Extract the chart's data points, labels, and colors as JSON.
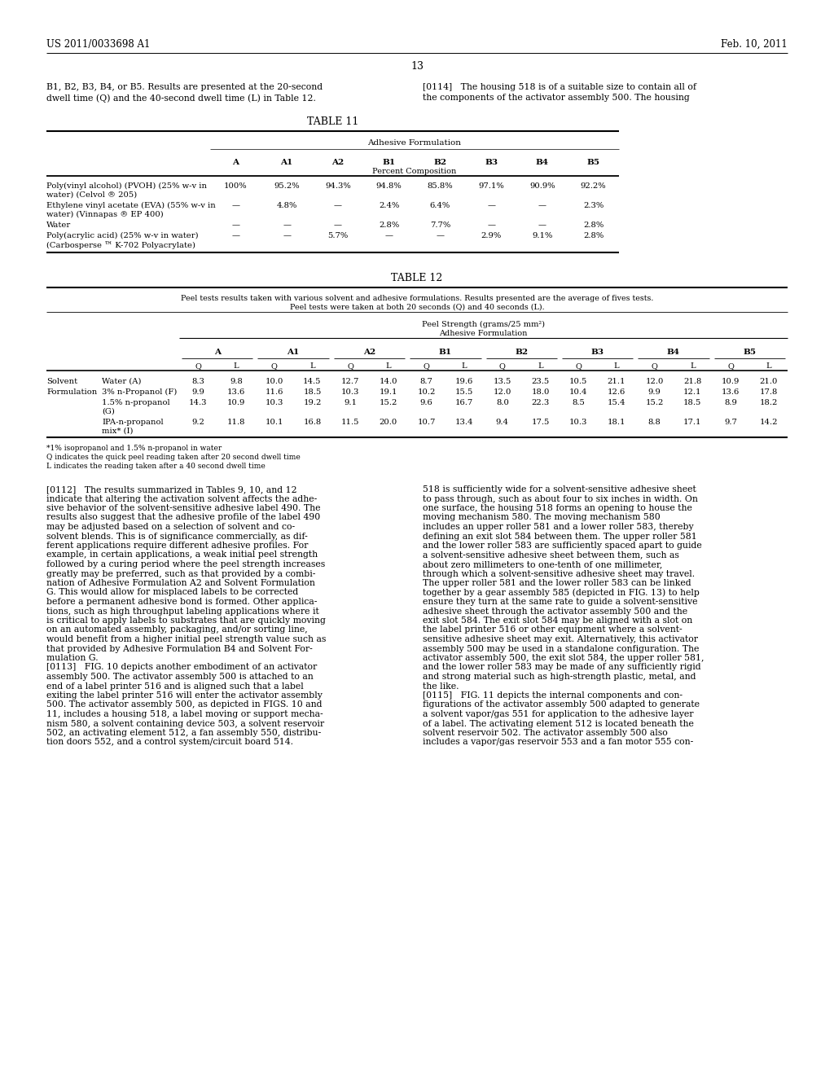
{
  "page_header_left": "US 2011/0033698 A1",
  "page_header_right": "Feb. 10, 2011",
  "page_number": "13",
  "bg_color": "#ffffff",
  "col_left_text1_line1": "B1, B2, B3, B4, or B5. Results are presented at the 20-second",
  "col_left_text1_line2": "dwell time (Q) and the 40-second dwell time (L) in Table 12.",
  "col_right_text1_line1": "[0114]   The housing 518 is of a suitable size to contain all of",
  "col_right_text1_line2": "the components of the activator assembly 500. The housing",
  "table11_title": "TABLE 11",
  "table11_header1": "Adhesive Formulation",
  "table11_cols": [
    "A",
    "A1",
    "A2",
    "B1",
    "B2",
    "B3",
    "B4",
    "B5"
  ],
  "table11_subheader": "Percent Composition",
  "table11_row0_label1": "Poly(vinyl alcohol) (PVOH) (25% w-v in",
  "table11_row0_label2": "water) (Celvol ® 205)",
  "table11_row0_data": [
    "100%",
    "95.2%",
    "94.3%",
    "94.8%",
    "85.8%",
    "97.1%",
    "90.9%",
    "92.2%"
  ],
  "table11_row1_label1": "Ethylene vinyl acetate (EVA) (55% w-v in",
  "table11_row1_label2": "water) (Vinnapas ® EP 400)",
  "table11_row1_data": [
    "—",
    "4.8%",
    "—",
    "2.4%",
    "6.4%",
    "—",
    "—",
    "2.3%"
  ],
  "table11_row2_label1": "Water",
  "table11_row2_label2": "",
  "table11_row2_data": [
    "—",
    "—",
    "—",
    "2.8%",
    "7.7%",
    "—",
    "—",
    "2.8%"
  ],
  "table11_row3_label1": "Poly(acrylic acid) (25% w-v in water)",
  "table11_row3_label2": "(Carbosperse ™ K-702 Polyacrylate)",
  "table11_row3_data": [
    "—",
    "—",
    "5.7%",
    "—",
    "—",
    "2.9%",
    "9.1%",
    "2.8%"
  ],
  "table12_title": "TABLE 12",
  "table12_note_line1": "Peel tests results taken with various solvent and adhesive formulations. Results presented are the average of fives tests.",
  "table12_note_line2": "Peel tests were taken at both 20 seconds (Q) and 40 seconds (L).",
  "table12_header1": "Peel Strength (grams/25 mm²)",
  "table12_header2": "Adhesive Formulation",
  "table12_cols": [
    "A",
    "A1",
    "A2",
    "B1",
    "B2",
    "B3",
    "B4",
    "B5"
  ],
  "table12_data_row0": [
    8.3,
    9.8,
    10.0,
    14.5,
    12.7,
    14.0,
    8.7,
    19.6,
    13.5,
    23.5,
    10.5,
    21.1,
    12.0,
    21.8,
    10.9,
    21.0
  ],
  "table12_data_row1": [
    9.9,
    13.6,
    11.6,
    18.5,
    10.3,
    19.1,
    10.2,
    15.5,
    12.0,
    18.0,
    10.4,
    12.6,
    9.9,
    12.1,
    13.6,
    17.8
  ],
  "table12_data_row2a": [
    14.3,
    10.9,
    10.3,
    19.2,
    9.1,
    15.2,
    9.6,
    16.7,
    8.0,
    22.3,
    8.5,
    15.4,
    15.2,
    18.5,
    8.9,
    18.2
  ],
  "table12_data_row3a": [
    9.2,
    11.8,
    10.1,
    16.8,
    11.5,
    20.0,
    10.7,
    13.4,
    9.4,
    17.5,
    10.3,
    18.1,
    8.8,
    17.1,
    9.7,
    14.2
  ],
  "table12_fn1": "*1% isopropanol and 1.5% n-propanol in water",
  "table12_fn2": "Q indicates the quick peel reading taken after 20 second dwell time",
  "table12_fn3": "L indicates the reading taken after a 40 second dwell time",
  "body_left": [
    "[0112]   The results summarized in Tables 9, 10, and 12",
    "indicate that altering the activation solvent affects the adhe-",
    "sive behavior of the solvent-sensitive adhesive label 490. The",
    "results also suggest that the adhesive profile of the label 490",
    "may be adjusted based on a selection of solvent and co-",
    "solvent blends. This is of significance commercially, as dif-",
    "ferent applications require different adhesive profiles. For",
    "example, in certain applications, a weak initial peel strength",
    "followed by a curing period where the peel strength increases",
    "greatly may be preferred, such as that provided by a combi-",
    "nation of Adhesive Formulation A2 and Solvent Formulation",
    "G. This would allow for misplaced labels to be corrected",
    "before a permanent adhesive bond is formed. Other applica-",
    "tions, such as high throughput labeling applications where it",
    "is critical to apply labels to substrates that are quickly moving",
    "on an automated assembly, packaging, and/or sorting line,",
    "would benefit from a higher initial peel strength value such as",
    "that provided by Adhesive Formulation B4 and Solvent For-",
    "mulation G.",
    "[0113]   FIG. 10 depicts another embodiment of an activator",
    "assembly 500. The activator assembly 500 is attached to an",
    "end of a label printer 516 and is aligned such that a label",
    "exiting the label printer 516 will enter the activator assembly",
    "500. The activator assembly 500, as depicted in FIGS. 10 and",
    "11, includes a housing 518, a label moving or support mecha-",
    "nism 580, a solvent containing device 503, a solvent reservoir",
    "502, an activating element 512, a fan assembly 550, distribu-",
    "tion doors 552, and a control system/circuit board 514."
  ],
  "body_right": [
    "518 is sufficiently wide for a solvent-sensitive adhesive sheet",
    "to pass through, such as about four to six inches in width. On",
    "one surface, the housing 518 forms an opening to house the",
    "moving mechanism 580. The moving mechanism 580",
    "includes an upper roller 581 and a lower roller 583, thereby",
    "defining an exit slot 584 between them. The upper roller 581",
    "and the lower roller 583 are sufficiently spaced apart to guide",
    "a solvent-sensitive adhesive sheet between them, such as",
    "about zero millimeters to one-tenth of one millimeter,",
    "through which a solvent-sensitive adhesive sheet may travel.",
    "The upper roller 581 and the lower roller 583 can be linked",
    "together by a gear assembly 585 (depicted in FIG. 13) to help",
    "ensure they turn at the same rate to guide a solvent-sensitive",
    "adhesive sheet through the activator assembly 500 and the",
    "exit slot 584. The exit slot 584 may be aligned with a slot on",
    "the label printer 516 or other equipment where a solvent-",
    "sensitive adhesive sheet may exit. Alternatively, this activator",
    "assembly 500 may be used in a standalone configuration. The",
    "activator assembly 500, the exit slot 584, the upper roller 581,",
    "and the lower roller 583 may be made of any sufficiently rigid",
    "and strong material such as high-strength plastic, metal, and",
    "the like.",
    "[0115]   FIG. 11 depicts the internal components and con-",
    "figurations of the activator assembly 500 adapted to generate",
    "a solvent vapor/gas 551 for application to the adhesive layer",
    "of a label. The activating element 512 is located beneath the",
    "solvent reservoir 502. The activator assembly 500 also",
    "includes a vapor/gas reservoir 553 and a fan motor 555 con-"
  ]
}
